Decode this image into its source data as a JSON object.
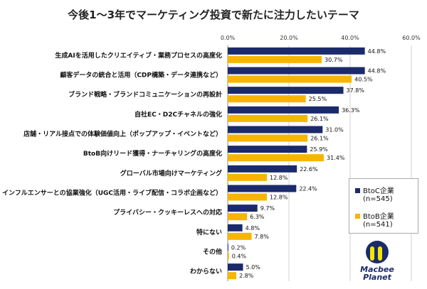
{
  "chart_data": {
    "type": "bar",
    "orientation": "horizontal",
    "title": "今後1〜3年でマーケティング投資で新たに注力したいテーマ",
    "categories": [
      "生成AIを活用したクリエイティブ・業務プロセスの高度化",
      "顧客データの統合と活用（CDP構築・データ連携など）",
      "ブランド戦略・ブランドコミュニケーションの再設計",
      "自社EC・D2Cチャネルの強化",
      "店舗・リアル接点での体験価値向上（ポップアップ・イベントなど）",
      "BtoB向けリード獲得・ナーチャリングの高度化",
      "グローバル市場向けマーケティング",
      "インフルエンサーとの協業強化（UGC活用・ライブ配信・コラボ企画など）",
      "プライバシー・クッキーレスへの対応",
      "特にない",
      "その他",
      "わからない"
    ],
    "series": [
      {
        "name": "BtoC企業",
        "sub": "(n=545)",
        "color": "#1b2a6b",
        "values": [
          44.8,
          44.8,
          37.8,
          36.3,
          31.0,
          25.9,
          22.6,
          22.4,
          9.7,
          4.8,
          0.2,
          5.0
        ]
      },
      {
        "name": "BtoB企業",
        "sub": "(n=541)",
        "color": "#f7b500",
        "values": [
          30.7,
          40.5,
          25.5,
          26.1,
          26.1,
          31.4,
          12.8,
          12.8,
          6.3,
          7.8,
          0.4,
          2.8
        ]
      }
    ],
    "xlim": [
      0,
      60
    ],
    "xticks": [
      "0.0%",
      "20.0%",
      "40.0%",
      "60.0%"
    ],
    "grid": true,
    "legend_position": "right"
  },
  "logo": {
    "line1": "Macbee",
    "line2": "Planet"
  }
}
